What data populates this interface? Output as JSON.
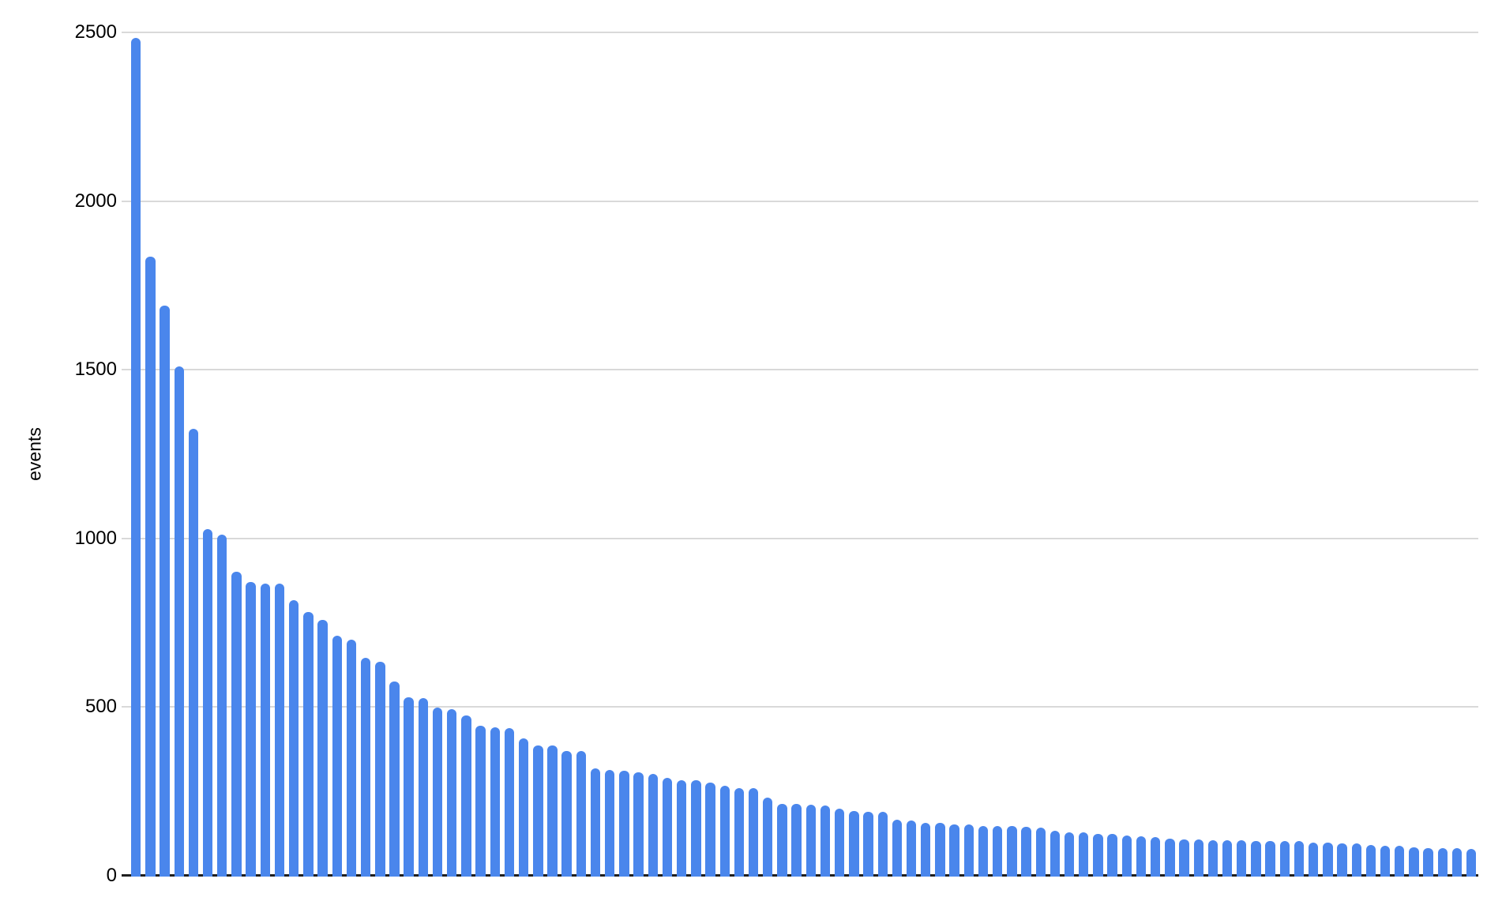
{
  "chart_data": {
    "type": "bar",
    "title": "",
    "xlabel": "",
    "ylabel": "events",
    "categories": [],
    "values": [
      2484,
      1835,
      1690,
      1510,
      1325,
      1028,
      1012,
      902,
      870,
      867,
      866,
      816,
      783,
      759,
      712,
      700,
      646,
      634,
      577,
      530,
      527,
      499,
      494,
      475,
      445,
      440,
      438,
      407,
      386,
      386,
      371,
      370,
      318,
      314,
      312,
      307,
      302,
      291,
      284,
      283,
      277,
      267,
      260,
      259,
      232,
      213,
      213,
      210,
      209,
      199,
      191,
      190,
      190,
      166,
      165,
      157,
      156,
      152,
      152,
      148,
      148,
      147,
      145,
      143,
      134,
      129,
      128,
      124,
      124,
      120,
      116,
      115,
      109,
      108,
      107,
      106,
      105,
      105,
      104,
      104,
      103,
      102,
      99,
      98,
      96,
      95,
      91,
      90,
      89,
      85,
      82,
      82,
      81,
      80
    ],
    "yticks": [
      0,
      500,
      1000,
      1500,
      2000,
      2500
    ],
    "ylim": [
      0,
      2500
    ],
    "grid": true,
    "legend_position": "none",
    "x_tick_labels_visible": false,
    "bar_color": "#4a86ec",
    "gridline_color": "#d9d9d9",
    "axis_color": "#1f1f1f",
    "text_color": "#000000"
  }
}
